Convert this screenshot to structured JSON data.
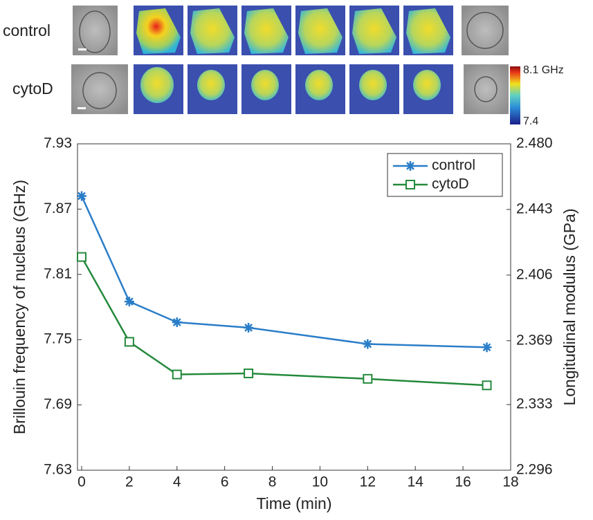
{
  "panel_labels": [
    "control",
    "cytoD"
  ],
  "colorbar": {
    "max_label": "8.1 GHz",
    "min_label": "7.4"
  },
  "chart_data": {
    "type": "line",
    "x": [
      0,
      2,
      4,
      7,
      12,
      17
    ],
    "series": [
      {
        "name": "control",
        "color": "#2a7dc8",
        "marker": "asterisk",
        "values": [
          7.882,
          7.785,
          7.766,
          7.761,
          7.746,
          7.743
        ]
      },
      {
        "name": "cytoD",
        "color": "#23893b",
        "marker": "square",
        "values": [
          7.826,
          7.748,
          7.718,
          7.719,
          7.714,
          7.708
        ]
      }
    ],
    "xlabel": "Time (min)",
    "ylabel": "Brillouin frequency of nucleus (GHz)",
    "y2label": "Longitudinal modulus (GPa)",
    "xlim": [
      0,
      18
    ],
    "xticks": [
      0,
      2,
      4,
      6,
      8,
      10,
      12,
      14,
      16,
      18
    ],
    "ylim": [
      7.63,
      7.93
    ],
    "yticks": [
      7.63,
      7.69,
      7.75,
      7.81,
      7.87,
      7.93
    ],
    "y2lim": [
      2.296,
      2.48
    ],
    "y2ticks": [
      2.296,
      2.333,
      2.369,
      2.406,
      2.443,
      {
        "value": 2.48,
        "label": "2.480"
      }
    ],
    "legend": "top-right"
  }
}
